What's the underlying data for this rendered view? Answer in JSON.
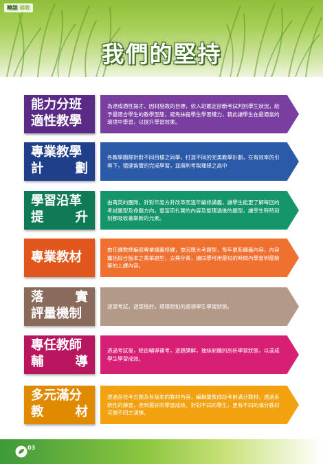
{
  "header": {
    "logo_main": "曉語",
    "logo_sub": "補教",
    "title": "我們的堅持"
  },
  "items": [
    {
      "label_lines": [
        "能力分班",
        "適性教學"
      ],
      "spread2": false,
      "text": "為達成適性揚才、因材施教的目標，依入班鑑定診斷考試判別學生狀況，給予最適合學生的教學型態，避免抹殺學生學習權力，藉此讓學生在最適當的環境中學習，以提升學習效果。",
      "label_color": "#5b2a86",
      "arrow_color": "#7a3ea0"
    },
    {
      "label_lines": [
        "專業教學",
        "計　　劃"
      ],
      "spread2": true,
      "text": "各教學團隊針對不同目標之同學，打造不同的完美教學計劃，在有效率的引導下，穩健紮實的完成學習，並順利考取理想之高中",
      "label_color": "#1f3f8a",
      "arrow_color": "#2b5aa8"
    },
    {
      "label_lines": [
        "學習沿革",
        "提　　升"
      ],
      "spread2": true,
      "text": "由菁英的團隊，針對年度方針改革而逐年編修講義，讓學生能更了解每回的考試題型及命題方向，豐富而扎實的內容及整理過後的題型，讓學生時時刻刻都吸收著嶄新的元素。",
      "label_color": "#0f7a55",
      "arrow_color": "#15966a"
    },
    {
      "label_lines": [
        "專業教材"
      ],
      "spread2": false,
      "text": "由任課教師編寫專業講義授課，並因應大考題型，每年更新講義內容，內容囊括綜合版本之菁華題型，去蕪存菁，讓同學可用最短的時間內學習到最精華的上課內容。",
      "label_color": "#e0561c",
      "arrow_color": "#f07030"
    },
    {
      "label_lines": [
        "落　　實",
        "評量機制"
      ],
      "spread2": false,
      "text": "逐堂考試，逐堂檢討，環環相扣的處理學生學習狀態。",
      "label_color": "#8a6a5a",
      "arrow_color": "#b39a88"
    },
    {
      "label_lines": [
        "專任教師",
        "輔　　導"
      ],
      "spread2": true,
      "text": "透過考試後，經由輔導補考，逐題講解，抽絲剝繭的剖析學習狀態，以達成學生學習成效。",
      "label_color": "#b8175f",
      "arrow_color": "#d81f76"
    },
    {
      "label_lines": [
        "多元滿分",
        "教　　材"
      ],
      "spread2": true,
      "text": "透過各校考古題及各版本的教材內容，編輯彙整成段考前滿分教材，透過系統性的練習，達到最好的學習成效。針對不同的學生，更有不同的滿分教材可做不同之演練。",
      "label_color": "#e08a00",
      "arrow_color": "#f2a20f"
    }
  ],
  "footer": {
    "page_number": "03"
  }
}
